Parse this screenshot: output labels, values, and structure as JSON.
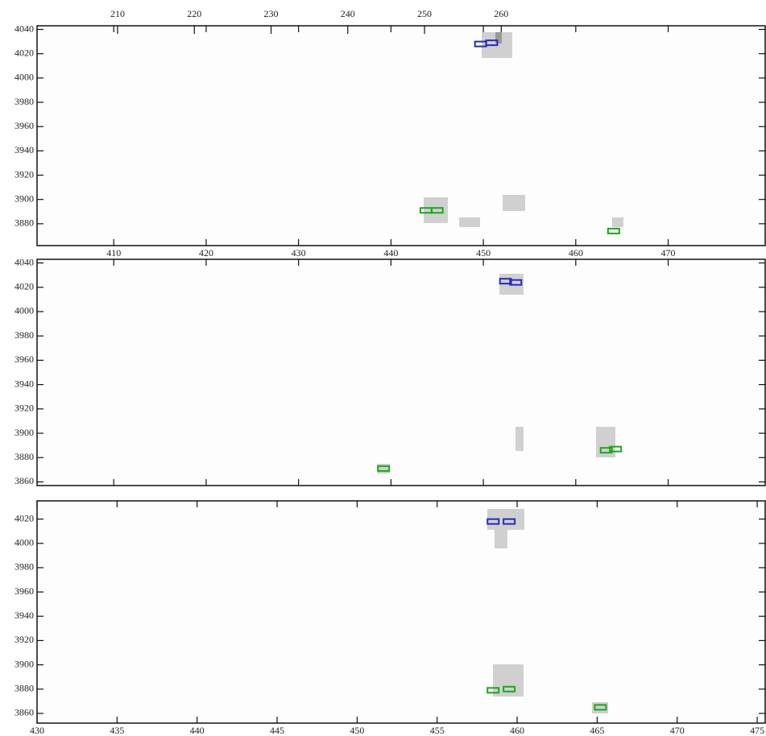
{
  "chart_data": [
    {
      "type": "box-scatter",
      "xlim": [
        401.7,
        480.5
      ],
      "xticks": [
        410,
        420,
        430,
        440,
        450,
        460,
        470
      ],
      "xtick_labels": true,
      "x2lim": [
        199.5,
        294.4
      ],
      "x2ticks": [
        210,
        220,
        230,
        240,
        250,
        260
      ],
      "ylim": [
        3862,
        4043
      ],
      "yticks": [
        3880,
        3900,
        3920,
        3940,
        3960,
        3980,
        4000,
        4020,
        4040
      ],
      "series": [
        {
          "color": "#2a2ab8",
          "x": [
            449.7,
            450.9
          ],
          "values": [
            4028,
            4029
          ]
        },
        {
          "color": "#18a818",
          "x": [
            443.8,
            445.0,
            464.1
          ],
          "values": [
            3891,
            3891,
            3874
          ]
        }
      ]
    },
    {
      "type": "box-scatter",
      "xlim": [
        401.7,
        480.5
      ],
      "xticks": [
        410,
        420,
        430,
        440,
        450,
        460,
        470
      ],
      "xtick_labels": false,
      "ylim": [
        3857,
        4043
      ],
      "yticks": [
        3860,
        3880,
        3900,
        3920,
        3940,
        3960,
        3980,
        4000,
        4020,
        4040
      ],
      "series": [
        {
          "color": "#2a2ab8",
          "x": [
            452.4,
            453.5
          ],
          "values": [
            4025,
            4024
          ]
        },
        {
          "color": "#18a818",
          "x": [
            439.2,
            463.3,
            464.3
          ],
          "values": [
            3871,
            3886,
            3887
          ]
        }
      ]
    },
    {
      "type": "box-scatter",
      "xlim": [
        430,
        475.5
      ],
      "xticks": [
        430,
        435,
        440,
        445,
        450,
        455,
        460,
        465,
        470,
        475
      ],
      "xtick_labels": true,
      "ylim": [
        3852,
        4035
      ],
      "yticks": [
        3860,
        3880,
        3900,
        3920,
        3940,
        3960,
        3980,
        4000,
        4020
      ],
      "series": [
        {
          "color": "#2a2ab8",
          "x": [
            458.5,
            459.5
          ],
          "values": [
            4018,
            4018
          ]
        },
        {
          "color": "#18a818",
          "x": [
            458.5,
            459.5,
            465.2
          ],
          "values": [
            3879,
            3880,
            3865
          ]
        }
      ]
    }
  ]
}
